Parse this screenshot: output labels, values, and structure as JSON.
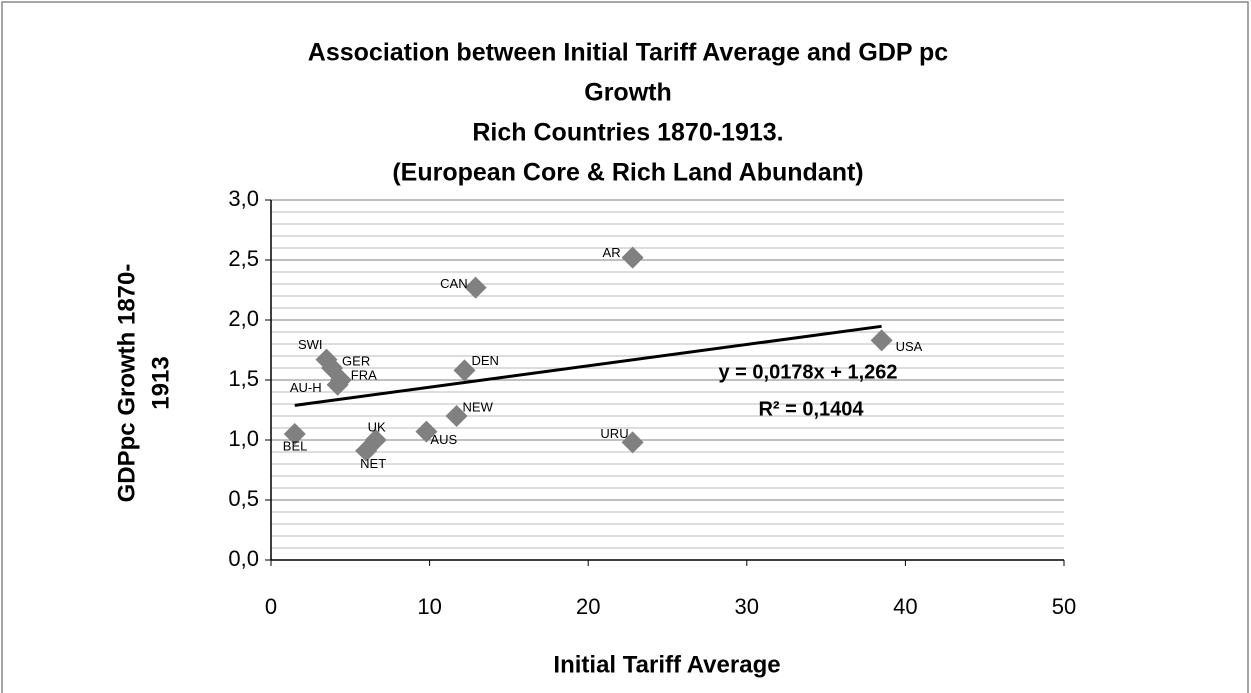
{
  "chart_data": {
    "type": "scatter",
    "title": [
      "Association between Initial Tariff Average and GDP pc",
      "Growth",
      "Rich Countries 1870-1913.",
      "(European Core & Rich Land Abundant)"
    ],
    "x_label": "Initial Tariff Average",
    "y_label": [
      "GDPpc Growth 1870-",
      "1913"
    ],
    "color": "#808080",
    "points": [
      {
        "label": "BEL",
        "x": 1.5,
        "y": 1.05
      },
      {
        "label": "SWI",
        "x": 3.5,
        "y": 1.67
      },
      {
        "label": "GER",
        "x": 3.85,
        "y": 1.6
      },
      {
        "label": "AU-H",
        "x": 4.2,
        "y": 1.46
      },
      {
        "label": "FRA",
        "x": 4.4,
        "y": 1.5
      },
      {
        "label": "NET",
        "x": 6.0,
        "y": 0.91
      },
      {
        "label": "UK",
        "x": 6.6,
        "y": 1.0
      },
      {
        "label": "AUS",
        "x": 9.8,
        "y": 1.07
      },
      {
        "label": "NEW",
        "x": 11.7,
        "y": 1.2
      },
      {
        "label": "DEN",
        "x": 12.2,
        "y": 1.58
      },
      {
        "label": "CAN",
        "x": 12.9,
        "y": 2.27
      },
      {
        "label": "AR",
        "x": 22.8,
        "y": 2.52
      },
      {
        "label": "URU",
        "x": 22.8,
        "y": 0.98
      },
      {
        "label": "USA",
        "x": 38.5,
        "y": 1.83
      }
    ],
    "trendline": {
      "slope": 0.0178,
      "intercept": 1.262,
      "equation": "y = 0,0178x + 1,262",
      "r_squared": "R² = 0,1404"
    },
    "xlim": [
      0,
      50
    ],
    "xticks": [
      0,
      10,
      20,
      30,
      40,
      50
    ],
    "ylim": [
      0,
      3
    ],
    "yticks": [
      {
        "value": 0,
        "label": "0,0"
      },
      {
        "value": 0.5,
        "label": "0,5"
      },
      {
        "value": 1,
        "label": "1,0"
      },
      {
        "value": 1.5,
        "label": "1,5"
      },
      {
        "value": 2,
        "label": "2,0"
      },
      {
        "value": 2.5,
        "label": "2,5"
      },
      {
        "value": 3,
        "label": "3,0"
      }
    ],
    "grid": true,
    "minor_ystep": 0.1
  }
}
